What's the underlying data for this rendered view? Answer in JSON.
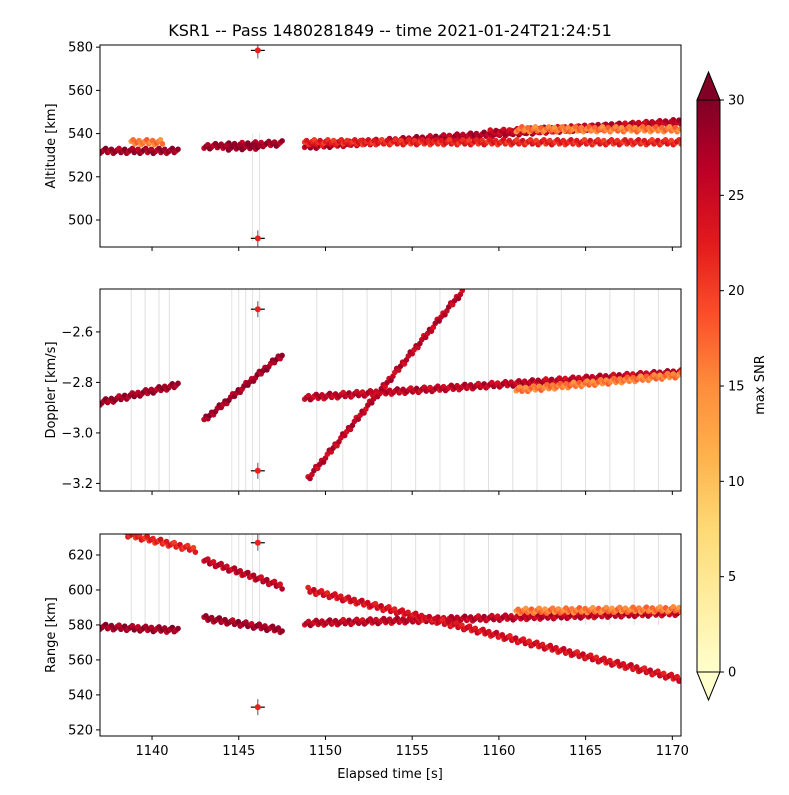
{
  "chart_data": {
    "type": "scatter",
    "title": "KSR1 -- Pass 1480281849 -- time 2021-01-24T21:24:51",
    "x_label": "Elapsed time [s]",
    "x_range": [
      1137.0,
      1170.5
    ],
    "x_ticks": [
      1140,
      1145,
      1150,
      1155,
      1160,
      1165,
      1170
    ],
    "colorbar": {
      "label": "max SNR",
      "range": [
        0,
        30
      ],
      "ticks": [
        0,
        5,
        10,
        15,
        20,
        25,
        30
      ],
      "colormap": "YlOrRd",
      "extend": "both"
    },
    "panels": [
      {
        "id": "altitude",
        "y_label": "Altitude [km]",
        "y_range": [
          487.5,
          581
        ],
        "y_ticks": [
          500,
          520,
          540,
          560,
          580
        ],
        "grid": false,
        "segments": [
          {
            "x": [
              1137.0,
              1141.5
            ],
            "y": [
              532,
              532
            ],
            "snr": 28
          },
          {
            "x": [
              1138.8,
              1140.6
            ],
            "y": [
              536,
              536
            ],
            "snr": 16
          },
          {
            "x": [
              1143.0,
              1147.5
            ],
            "y": [
              534,
              535.5
            ],
            "snr": 28
          },
          {
            "x": [
              1144.3,
              1146.2
            ],
            "y": [
              533.5,
              534
            ],
            "snr": 29
          },
          {
            "x": [
              1148.8,
              1170.5
            ],
            "y": [
              534,
              545.5
            ],
            "snr": 27
          },
          {
            "x": [
              1159.5,
              1170.5
            ],
            "y": [
              540.5,
              545
            ],
            "snr": 26
          },
          {
            "x": [
              1148.8,
              1170.5
            ],
            "y": [
              536,
              536
            ],
            "snr": 22
          },
          {
            "x": [
              1161.0,
              1170.5
            ],
            "y": [
              542,
              542
            ],
            "snr": 16
          }
        ],
        "outliers": [
          {
            "x": 1146.1,
            "y": 578.5,
            "snr": 22
          },
          {
            "x": 1146.1,
            "y": 491.5,
            "snr": 22
          }
        ]
      },
      {
        "id": "doppler",
        "y_label": "Doppler [km/s]",
        "y_range": [
          -3.23,
          -2.43
        ],
        "y_ticks": [
          -3.2,
          -3.0,
          -2.8,
          -2.6
        ],
        "grid": false,
        "segments": [
          {
            "x": [
              1137.0,
              1141.5
            ],
            "y": [
              -2.88,
              -2.81
            ],
            "snr": 28
          },
          {
            "x": [
              1143.0,
              1147.5
            ],
            "y": [
              -2.95,
              -2.69
            ],
            "snr": 28
          },
          {
            "x": [
              1148.8,
              1170.5
            ],
            "y": [
              -2.86,
              -2.76
            ],
            "snr": 26
          },
          {
            "x": [
              1149.0,
              1158.0
            ],
            "y": [
              -3.18,
              -2.43
            ],
            "snr": 26
          },
          {
            "x": [
              1161.0,
              1170.5
            ],
            "y": [
              -2.83,
              -2.77
            ],
            "snr": 16
          }
        ],
        "outliers": [
          {
            "x": 1146.1,
            "y": -2.51,
            "snr": 22
          },
          {
            "x": 1146.1,
            "y": -3.15,
            "snr": 22
          }
        ]
      },
      {
        "id": "range",
        "y_label": "Range [km]",
        "y_range": [
          516.5,
          632
        ],
        "y_ticks": [
          520,
          540,
          560,
          580,
          600,
          620
        ],
        "grid": false,
        "segments": [
          {
            "x": [
              1137.0,
              1141.5
            ],
            "y": [
              579,
              577
            ],
            "snr": 28
          },
          {
            "x": [
              1143.0,
              1147.5
            ],
            "y": [
              584,
              577
            ],
            "snr": 28
          },
          {
            "x": [
              1148.8,
              1170.5
            ],
            "y": [
              581,
              587
            ],
            "snr": 26
          },
          {
            "x": [
              1138.5,
              1142.5
            ],
            "y": [
              632,
              623
            ],
            "snr": 22
          },
          {
            "x": [
              1143.0,
              1147.5
            ],
            "y": [
              617,
              602
            ],
            "snr": 26
          },
          {
            "x": [
              1149.0,
              1170.5
            ],
            "y": [
              600,
              549
            ],
            "snr": 24
          },
          {
            "x": [
              1161.0,
              1170.5
            ],
            "y": [
              588,
              589
            ],
            "snr": 16
          }
        ],
        "outliers": [
          {
            "x": 1146.1,
            "y": 627,
            "snr": 22
          },
          {
            "x": 1146.1,
            "y": 533,
            "snr": 22
          }
        ]
      }
    ]
  }
}
